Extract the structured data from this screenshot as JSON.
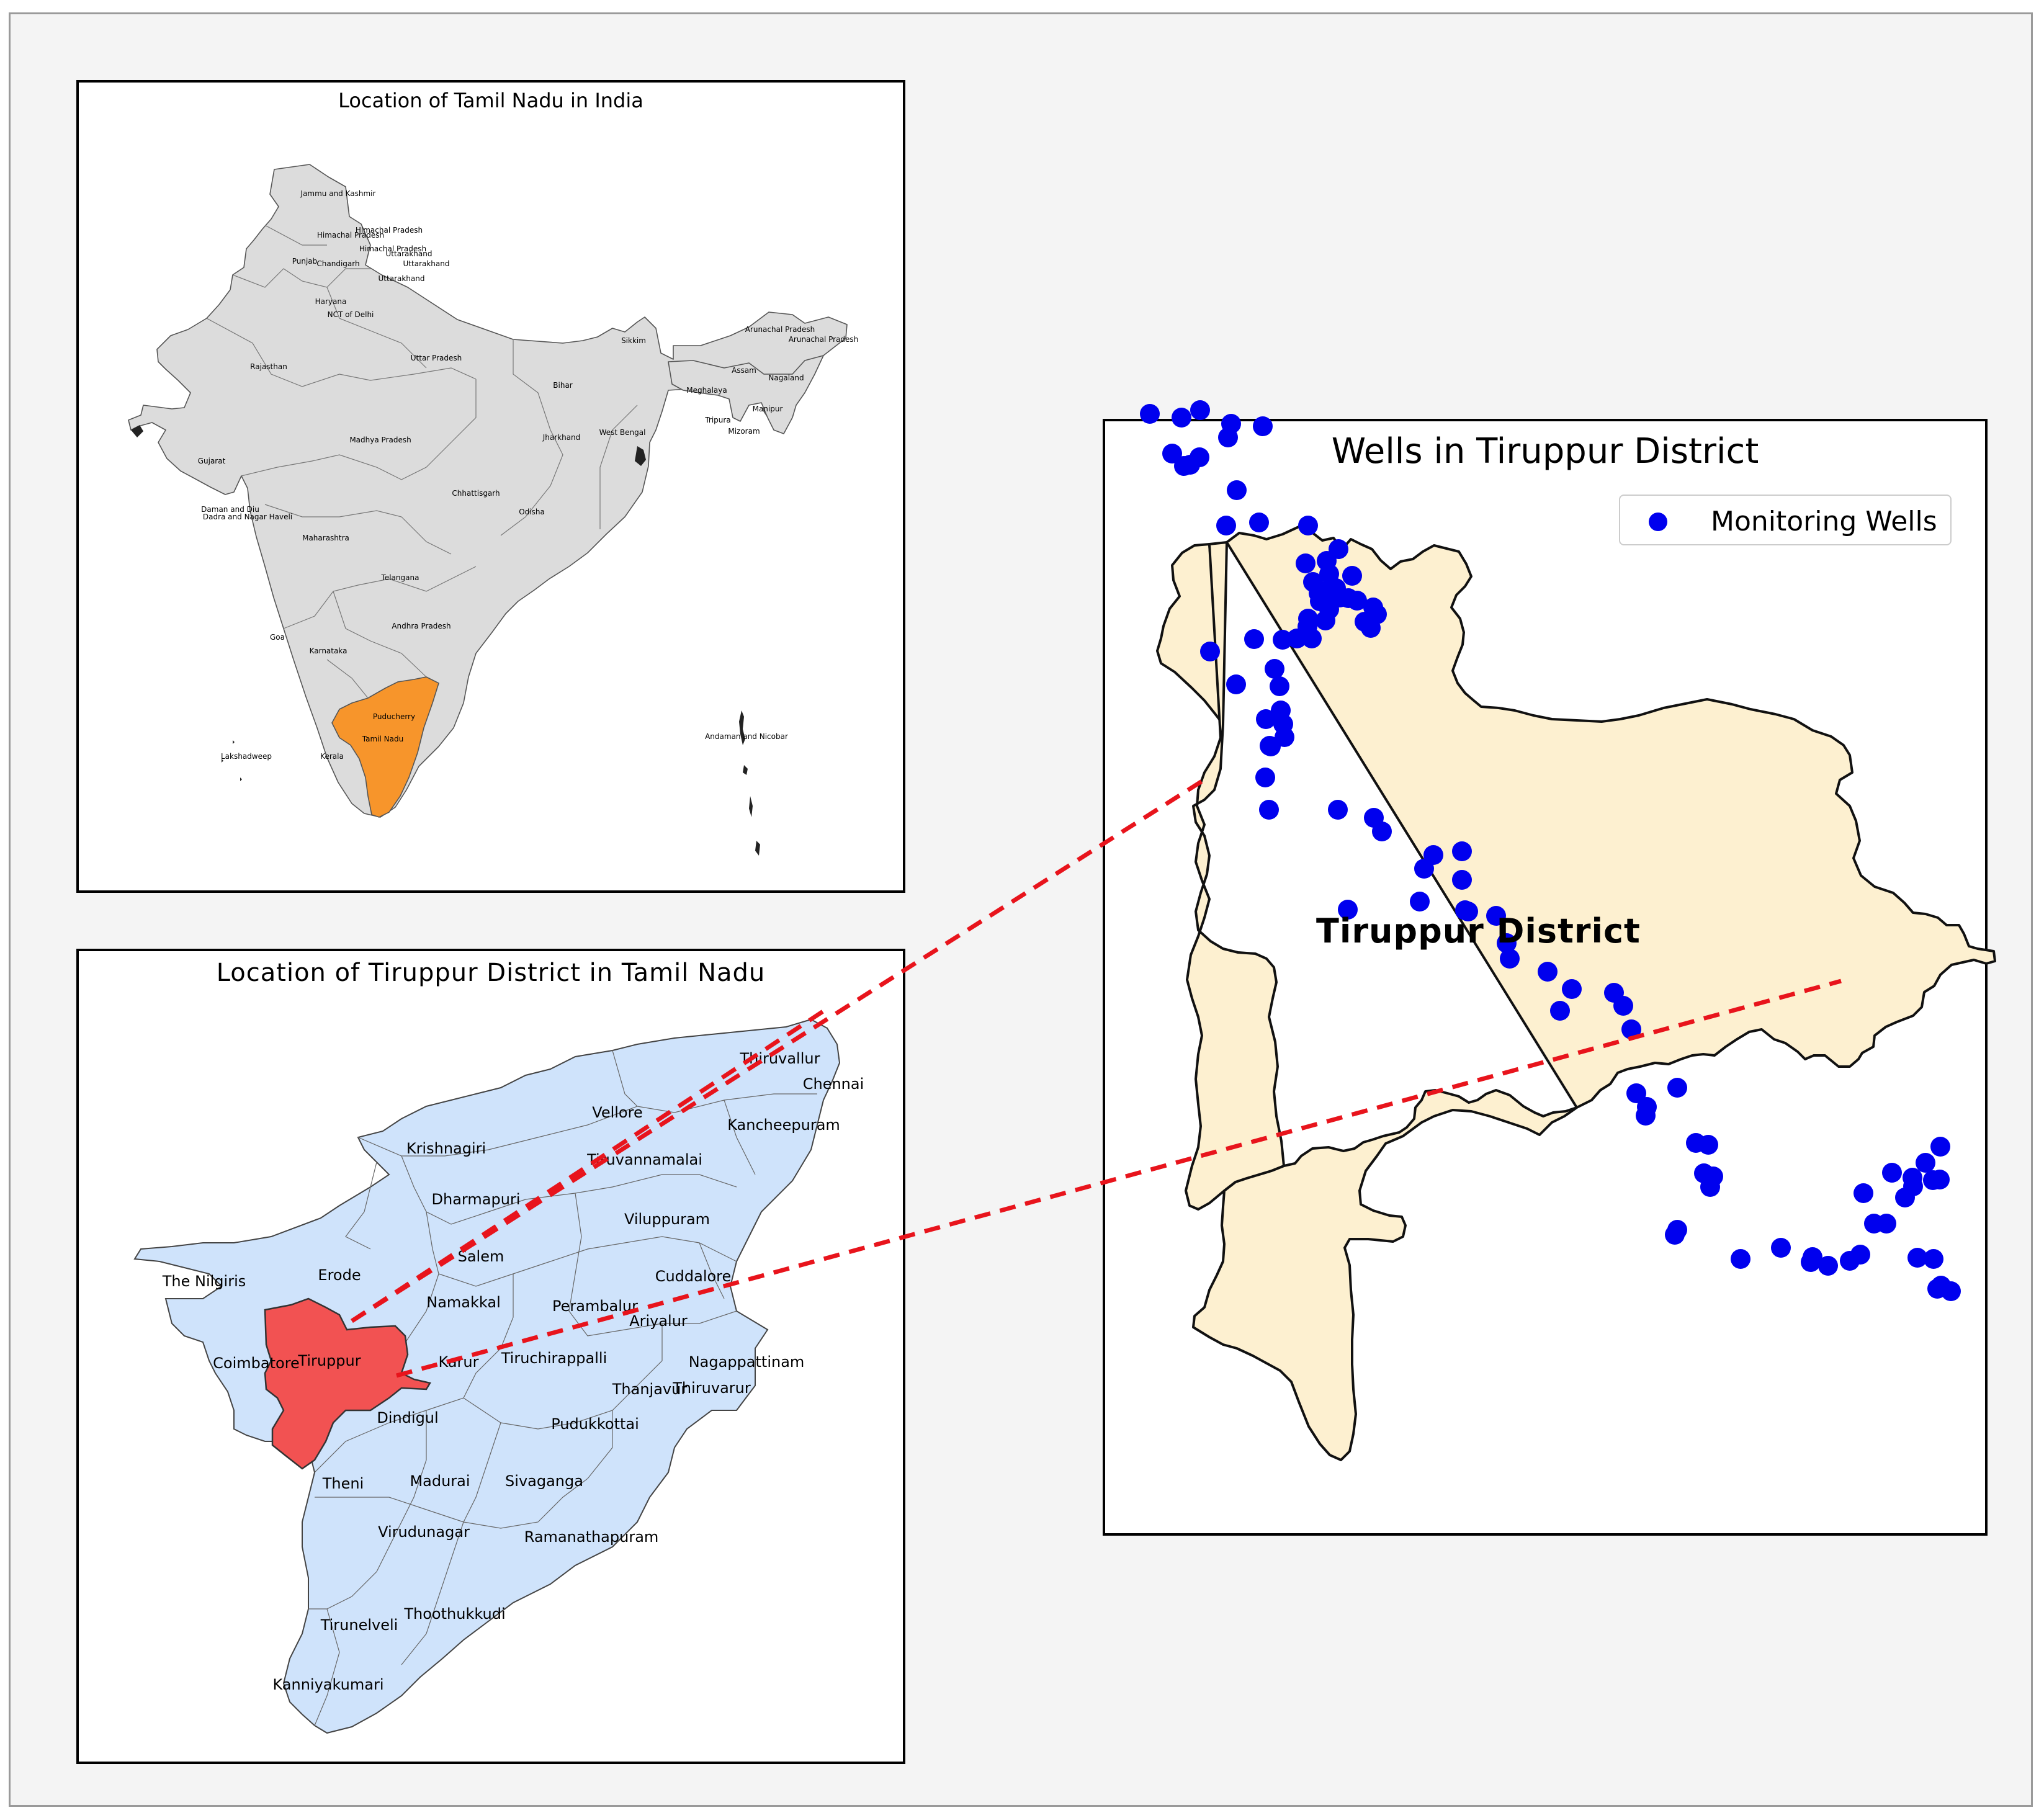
{
  "india_panel": {
    "title": "Location of Tamil Nadu in India",
    "state_labels": [
      "Jammu and Kashmir",
      "Himachal Pradesh",
      "Himachal Pradesh",
      "Himachal Pradesh",
      "Punjab",
      "Chandigarh",
      "Uttarakhand",
      "Uttarakhand",
      "Uttarakhand",
      "Haryana",
      "NCT of Delhi",
      "Rajasthan",
      "Uttar Pradesh",
      "Sikkim",
      "Arunachal Pradesh",
      "Arunachal Pradesh",
      "Assam",
      "Nagaland",
      "Meghalaya",
      "Bihar",
      "Manipur",
      "Tripura",
      "Mizoram",
      "Gujarat",
      "Madhya Pradesh",
      "Jharkhand",
      "West Bengal",
      "Chhattisgarh",
      "Daman and Diu",
      "Dadra and Nagar Haveli",
      "Odisha",
      "Maharashtra",
      "Telangana",
      "Andhra Pradesh",
      "Goa",
      "Karnataka",
      "Puducherry",
      "Tamil Nadu",
      "Kerala",
      "Lakshadweep",
      "Andaman and Nicobar"
    ],
    "highlight_state": "Tamil Nadu",
    "highlight_color": "#f7952b",
    "base_color": "#dcdcdc"
  },
  "tn_panel": {
    "title": "Location of Tiruppur District in Tamil Nadu",
    "district_labels": [
      "Thiruvallur",
      "Chennai",
      "Vellore",
      "Kancheepuram",
      "Krishnagiri",
      "Tiruvannamalai",
      "Dharmapuri",
      "Viluppuram",
      "Salem",
      "The Nilgiris",
      "Erode",
      "Cuddalore",
      "Namakkal",
      "Perambalur",
      "Ariyalur",
      "Tiruppur",
      "Coimbatore",
      "Karur",
      "Tiruchirappalli",
      "Nagappattinam",
      "Thanjavur",
      "Thiruvarur",
      "Dindigul",
      "Pudukkottai",
      "Theni",
      "Madurai",
      "Sivaganga",
      "Virudunagar",
      "Ramanathapuram",
      "Thoothukkudi",
      "Tirunelveli",
      "Kanniyakumari"
    ],
    "highlight_district": "Tiruppur",
    "highlight_color": "#f25252",
    "base_color": "#cfe3fb"
  },
  "wells_panel": {
    "title": "Wells in Tiruppur District",
    "legend_label": "Monitoring Wells",
    "district_label": "Tiruppur District",
    "marker_color": "#0000ee",
    "district_fill": "#fdf0d0",
    "connector_color": "#e8141c"
  },
  "chart_data": {
    "type": "scatter",
    "title": "Wells in Tiruppur District",
    "series": [
      {
        "name": "Monitoring Wells",
        "values": [
          [
            72,
            218
          ],
          [
            123,
            224
          ],
          [
            153,
            212
          ],
          [
            108,
            282
          ],
          [
            127,
            302
          ],
          [
            137,
            300
          ],
          [
            152,
            288
          ],
          [
            203,
            234
          ],
          [
            254,
            238
          ],
          [
            198,
            256
          ],
          [
            212,
            341
          ],
          [
            195,
            398
          ],
          [
            248,
            393
          ],
          [
            327,
            398
          ],
          [
            376,
            436
          ],
          [
            361,
            476
          ],
          [
            323,
            459
          ],
          [
            335,
            489
          ],
          [
            372,
            499
          ],
          [
            378,
            514
          ],
          [
            344,
            507
          ],
          [
            358,
            503
          ],
          [
            398,
            479
          ],
          [
            432,
            530
          ],
          [
            406,
            519
          ],
          [
            392,
            515
          ],
          [
            357,
            455
          ],
          [
            418,
            553
          ],
          [
            438,
            541
          ],
          [
            428,
            563
          ],
          [
            346,
            520
          ],
          [
            361,
            533
          ],
          [
            355,
            551
          ],
          [
            327,
            548
          ],
          [
            326,
            561
          ],
          [
            333,
            580
          ],
          [
            309,
            580
          ],
          [
            286,
            582
          ],
          [
            240,
            581
          ],
          [
            169,
            601
          ],
          [
            211,
            654
          ],
          [
            273,
            629
          ],
          [
            281,
            657
          ],
          [
            283,
            696
          ],
          [
            259,
            710
          ],
          [
            265,
            753
          ],
          [
            267,
            754
          ],
          [
            289,
            739
          ],
          [
            287,
            718
          ],
          [
            258,
            804
          ],
          [
            264,
            856
          ],
          [
            375,
            856
          ],
          [
            433,
            869
          ],
          [
            446,
            891
          ],
          [
            391,
            1017
          ],
          [
            507,
            1004
          ],
          [
            529,
            929
          ],
          [
            514,
            951
          ],
          [
            575,
            923
          ],
          [
            575,
            969
          ],
          [
            585,
            1020
          ],
          [
            580,
            1018
          ],
          [
            630,
            1027
          ],
          [
            647,
            1071
          ],
          [
            652,
            1096
          ],
          [
            752,
            1145
          ],
          [
            713,
            1117
          ],
          [
            733,
            1180
          ],
          [
            820,
            1151
          ],
          [
            835,
            1172
          ],
          [
            848,
            1210
          ],
          [
            856,
            1313
          ],
          [
            922,
            1304
          ],
          [
            873,
            1335
          ],
          [
            871,
            1349
          ],
          [
            952,
            1393
          ],
          [
            972,
            1396
          ],
          [
            965,
            1442
          ],
          [
            980,
            1447
          ],
          [
            975,
            1464
          ],
          [
            922,
            1533
          ],
          [
            918,
            1541
          ],
          [
            1024,
            1580
          ],
          [
            1089,
            1562
          ],
          [
            1137,
            1585
          ],
          [
            1140,
            1577
          ],
          [
            1165,
            1591
          ],
          [
            1200,
            1583
          ],
          [
            1217,
            1573
          ],
          [
            1239,
            1523
          ],
          [
            1259,
            1523
          ],
          [
            1289,
            1481
          ],
          [
            1222,
            1474
          ],
          [
            1268,
            1441
          ],
          [
            1322,
            1425
          ],
          [
            1334,
            1453
          ],
          [
            1345,
            1452
          ],
          [
            1346,
            1399
          ],
          [
            1301,
            1449
          ],
          [
            1302,
            1463
          ],
          [
            1309,
            1578
          ],
          [
            1335,
            1580
          ],
          [
            1341,
            1628
          ],
          [
            1363,
            1632
          ],
          [
            1347,
            1623
          ]
        ]
      }
    ]
  }
}
